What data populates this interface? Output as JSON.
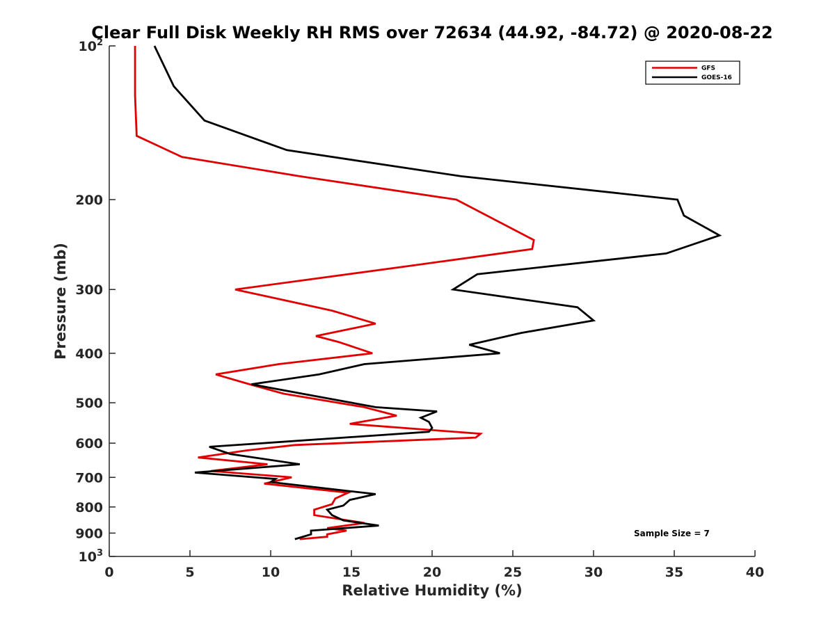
{
  "chart_data": {
    "type": "line",
    "title": "Clear Full Disk Weekly RH RMS over 72634 (44.92, -84.72) @ 2020-08-22",
    "xlabel": "Relative Humidity (%)",
    "ylabel": "Pressure (mb)",
    "xlim": [
      0,
      40
    ],
    "ylim": [
      100,
      1000
    ],
    "yscale": "log",
    "y_reversed": true,
    "xticks": [
      0,
      5,
      10,
      15,
      20,
      25,
      30,
      35,
      40
    ],
    "yticks": [
      {
        "value": 100,
        "label": "10",
        "sup": "2"
      },
      {
        "value": 200,
        "label": "200"
      },
      {
        "value": 300,
        "label": "300"
      },
      {
        "value": 400,
        "label": "400"
      },
      {
        "value": 500,
        "label": "500"
      },
      {
        "value": 600,
        "label": "600"
      },
      {
        "value": 700,
        "label": "700"
      },
      {
        "value": 800,
        "label": "800"
      },
      {
        "value": 900,
        "label": "900"
      },
      {
        "value": 1000,
        "label": "10",
        "sup": "3"
      }
    ],
    "legend_position": "top-right",
    "annotation": "Sample Size = 7",
    "grid": false,
    "series": [
      {
        "name": "GFS",
        "color": "#e00000",
        "points": [
          [
            1.6,
            100
          ],
          [
            1.6,
            125
          ],
          [
            1.7,
            150
          ],
          [
            4.5,
            165
          ],
          [
            11.8,
            180
          ],
          [
            21.5,
            200
          ],
          [
            26.3,
            240
          ],
          [
            26.2,
            250
          ],
          [
            18.5,
            270
          ],
          [
            7.8,
            300
          ],
          [
            13.8,
            330
          ],
          [
            16.5,
            350
          ],
          [
            12.8,
            370
          ],
          [
            14.2,
            380
          ],
          [
            16.3,
            400
          ],
          [
            10.5,
            420
          ],
          [
            6.6,
            440
          ],
          [
            8.7,
            460
          ],
          [
            10.8,
            480
          ],
          [
            15.8,
            510
          ],
          [
            17.8,
            530
          ],
          [
            14.9,
            550
          ],
          [
            23.0,
            575
          ],
          [
            22.7,
            585
          ],
          [
            11.5,
            605
          ],
          [
            8.5,
            620
          ],
          [
            5.5,
            640
          ],
          [
            9.8,
            660
          ],
          [
            6.3,
            680
          ],
          [
            11.3,
            700
          ],
          [
            9.6,
            720
          ],
          [
            14.8,
            750
          ],
          [
            14.0,
            770
          ],
          [
            13.8,
            790
          ],
          [
            12.7,
            810
          ],
          [
            12.7,
            830
          ],
          [
            15.8,
            860
          ],
          [
            13.5,
            880
          ],
          [
            14.7,
            890
          ],
          [
            13.5,
            905
          ],
          [
            13.5,
            915
          ],
          [
            11.8,
            925
          ]
        ]
      },
      {
        "name": "GOES-16",
        "color": "#000000",
        "points": [
          [
            2.8,
            100
          ],
          [
            4.0,
            120
          ],
          [
            5.9,
            140
          ],
          [
            11.0,
            160
          ],
          [
            21.8,
            180
          ],
          [
            35.2,
            200
          ],
          [
            35.6,
            215
          ],
          [
            37.8,
            235
          ],
          [
            34.5,
            255
          ],
          [
            22.8,
            280
          ],
          [
            21.3,
            300
          ],
          [
            29.0,
            325
          ],
          [
            30.0,
            345
          ],
          [
            25.5,
            365
          ],
          [
            22.3,
            385
          ],
          [
            24.2,
            400
          ],
          [
            15.8,
            420
          ],
          [
            13.0,
            440
          ],
          [
            8.8,
            460
          ],
          [
            13.5,
            490
          ],
          [
            16.5,
            510
          ],
          [
            20.3,
            520
          ],
          [
            19.3,
            535
          ],
          [
            19.8,
            545
          ],
          [
            20.0,
            560
          ],
          [
            19.8,
            570
          ],
          [
            6.2,
            610
          ],
          [
            7.5,
            630
          ],
          [
            11.8,
            660
          ],
          [
            5.3,
            685
          ],
          [
            10.3,
            705
          ],
          [
            10.0,
            715
          ],
          [
            16.5,
            755
          ],
          [
            14.9,
            775
          ],
          [
            14.5,
            795
          ],
          [
            13.5,
            810
          ],
          [
            13.8,
            830
          ],
          [
            14.5,
            850
          ],
          [
            16.7,
            870
          ],
          [
            12.5,
            890
          ],
          [
            12.5,
            905
          ],
          [
            11.5,
            925
          ]
        ]
      }
    ]
  }
}
